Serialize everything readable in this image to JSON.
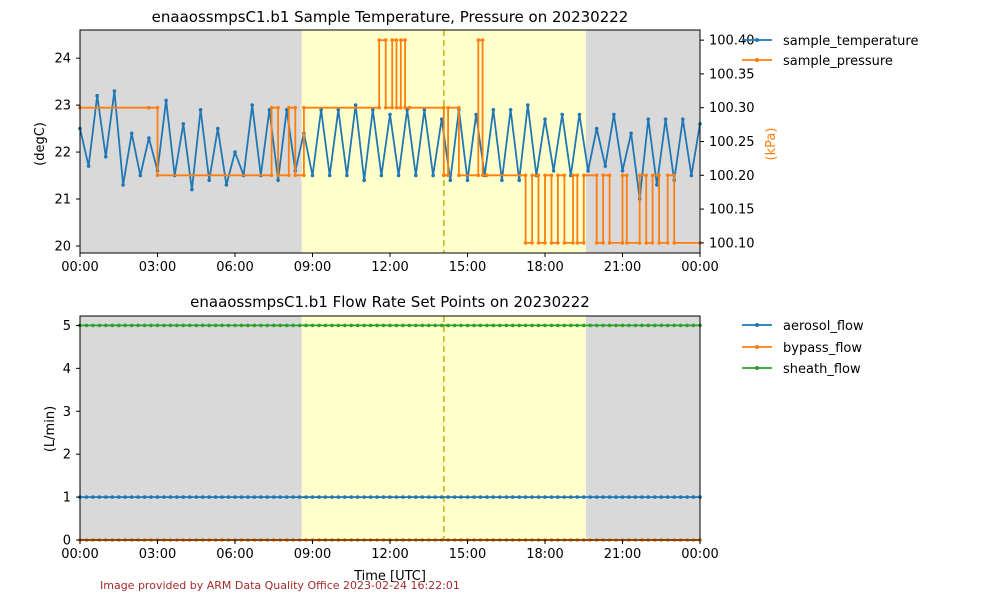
{
  "footer": {
    "credit": "Image provided by ARM Data Quality Office 2023-02-24 16:22:01"
  },
  "colors": {
    "temperature": "#1f77b4",
    "pressure": "#ff7f0e",
    "aerosol": "#1f77b4",
    "bypass": "#ff7f0e",
    "sheath": "#2ca02c",
    "night_shade": "#d9d9d9",
    "day_shade": "#ffffcc",
    "marker_line": "#bcbd22",
    "credit": "#a52a2a"
  },
  "chart_data": [
    {
      "type": "line",
      "title": "enaaossmpsC1.b1 Sample Temperature, Pressure on 20230222",
      "xlabel": "",
      "ylabel": "(degC)",
      "y2label": "(kPa)",
      "xlim": [
        "00:00",
        "24:00"
      ],
      "ylim": [
        19.85,
        24.6
      ],
      "y2lim": [
        100.085,
        100.415
      ],
      "x_ticks": [
        "00:00",
        "03:00",
        "06:00",
        "09:00",
        "12:00",
        "15:00",
        "18:00",
        "21:00",
        "00:00"
      ],
      "y_ticks": [
        20,
        21,
        22,
        23,
        24
      ],
      "y2_ticks": [
        "100.10",
        "100.15",
        "100.20",
        "100.25",
        "100.30",
        "100.35",
        "100.40"
      ],
      "shading": [
        {
          "kind": "night",
          "from": "00:00",
          "to": "08:35"
        },
        {
          "kind": "day",
          "from": "08:35",
          "to": "19:35"
        },
        {
          "kind": "night",
          "from": "19:35",
          "to": "24:00"
        }
      ],
      "vertical_marker": "14:05",
      "legend_position": "outside-right",
      "series": [
        {
          "name": "sample_temperature",
          "axis": "left",
          "note": "oscillates between ~21.3 and ~23.0 degC roughly every 20 minutes",
          "x": [
            "00:00",
            "00:20",
            "00:40",
            "01:00",
            "01:20",
            "01:40",
            "02:00",
            "02:20",
            "02:40",
            "03:00",
            "03:20",
            "03:40",
            "04:00",
            "04:20",
            "04:40",
            "05:00",
            "05:20",
            "05:40",
            "06:00",
            "06:20",
            "06:40",
            "07:00",
            "07:20",
            "07:40",
            "08:00",
            "08:20",
            "08:40",
            "09:00",
            "09:20",
            "09:40",
            "10:00",
            "10:20",
            "10:40",
            "11:00",
            "11:20",
            "11:40",
            "12:00",
            "12:20",
            "12:40",
            "13:00",
            "13:20",
            "13:40",
            "14:00",
            "14:20",
            "14:40",
            "15:00",
            "15:20",
            "15:40",
            "16:00",
            "16:20",
            "16:40",
            "17:00",
            "17:20",
            "17:40",
            "18:00",
            "18:20",
            "18:40",
            "19:00",
            "19:20",
            "19:40",
            "20:00",
            "20:20",
            "20:40",
            "21:00",
            "21:20",
            "21:40",
            "22:00",
            "22:20",
            "22:40",
            "23:00",
            "23:20",
            "23:40",
            "24:00"
          ],
          "values": [
            22.5,
            21.7,
            23.2,
            21.9,
            23.3,
            21.3,
            22.4,
            21.5,
            22.3,
            21.6,
            23.1,
            21.5,
            22.6,
            21.2,
            22.9,
            21.4,
            22.5,
            21.3,
            22.0,
            21.5,
            23.0,
            21.5,
            22.9,
            21.4,
            22.9,
            21.6,
            22.4,
            21.5,
            22.9,
            21.5,
            22.9,
            21.5,
            23.0,
            21.4,
            22.9,
            21.5,
            22.8,
            21.5,
            22.9,
            21.5,
            22.9,
            21.5,
            22.7,
            21.4,
            22.9,
            21.4,
            22.8,
            21.5,
            22.9,
            21.4,
            22.9,
            21.4,
            23.0,
            21.5,
            22.7,
            21.6,
            22.8,
            21.5,
            22.8,
            21.6,
            22.5,
            21.7,
            22.8,
            21.6,
            22.4,
            21.0,
            22.7,
            21.3,
            22.7,
            21.4,
            22.7,
            21.5,
            22.6
          ]
        },
        {
          "name": "sample_pressure",
          "axis": "right",
          "x": [
            "00:00",
            "02:40",
            "02:40",
            "03:00",
            "03:00",
            "07:25",
            "07:25",
            "07:40",
            "07:40",
            "08:05",
            "08:05",
            "08:20",
            "08:20",
            "08:40",
            "08:40",
            "11:35",
            "11:35",
            "11:50",
            "11:50",
            "12:05",
            "12:05",
            "12:15",
            "12:15",
            "12:25",
            "12:25",
            "12:35",
            "12:35",
            "12:45",
            "12:45",
            "14:05",
            "14:05",
            "14:15",
            "14:15",
            "14:40",
            "14:40",
            "15:25",
            "15:25",
            "15:35",
            "15:35",
            "15:45",
            "15:45",
            "17:15",
            "17:15",
            "17:30",
            "17:30",
            "17:45",
            "17:45",
            "18:00",
            "18:00",
            "18:15",
            "18:15",
            "18:30",
            "18:30",
            "18:45",
            "18:45",
            "19:05",
            "19:05",
            "19:15",
            "19:15",
            "19:30",
            "19:30",
            "20:00",
            "20:00",
            "20:15",
            "20:15",
            "20:30",
            "20:30",
            "21:00",
            "21:00",
            "21:10",
            "21:10",
            "21:40",
            "21:40",
            "21:55",
            "21:55",
            "22:10",
            "22:10",
            "22:25",
            "22:25",
            "22:45",
            "22:45",
            "23:00",
            "23:00",
            "24:00"
          ],
          "values": [
            100.3,
            100.3,
            100.3,
            100.3,
            100.2,
            100.2,
            100.3,
            100.3,
            100.2,
            100.2,
            100.3,
            100.3,
            100.2,
            100.2,
            100.3,
            100.3,
            100.4,
            100.4,
            100.3,
            100.3,
            100.4,
            100.4,
            100.3,
            100.3,
            100.4,
            100.4,
            100.3,
            100.3,
            100.3,
            100.3,
            100.2,
            100.2,
            100.3,
            100.3,
            100.2,
            100.2,
            100.4,
            100.4,
            100.2,
            100.2,
            100.2,
            100.2,
            100.1,
            100.1,
            100.2,
            100.2,
            100.1,
            100.1,
            100.2,
            100.2,
            100.1,
            100.1,
            100.2,
            100.2,
            100.1,
            100.1,
            100.2,
            100.2,
            100.1,
            100.1,
            100.2,
            100.2,
            100.1,
            100.1,
            100.2,
            100.2,
            100.1,
            100.1,
            100.2,
            100.2,
            100.1,
            100.1,
            100.2,
            100.2,
            100.1,
            100.1,
            100.2,
            100.2,
            100.1,
            100.1,
            100.2,
            100.2,
            100.1,
            100.1
          ]
        }
      ]
    },
    {
      "type": "line",
      "title": "enaaossmpsC1.b1 Flow Rate Set Points on 20230222",
      "xlabel": "Time [UTC]",
      "ylabel": "(L/min)",
      "xlim": [
        "00:00",
        "24:00"
      ],
      "ylim": [
        0,
        5.22
      ],
      "x_ticks": [
        "00:00",
        "03:00",
        "06:00",
        "09:00",
        "12:00",
        "15:00",
        "18:00",
        "21:00",
        "00:00"
      ],
      "y_ticks": [
        0,
        1,
        2,
        3,
        4,
        5
      ],
      "shading": [
        {
          "kind": "night",
          "from": "00:00",
          "to": "08:35"
        },
        {
          "kind": "day",
          "from": "08:35",
          "to": "19:35"
        },
        {
          "kind": "night",
          "from": "19:35",
          "to": "24:00"
        }
      ],
      "vertical_marker": "14:05",
      "legend_position": "outside-right",
      "series": [
        {
          "name": "aerosol_flow",
          "x": [
            "00:00",
            "24:00"
          ],
          "values": [
            1,
            1
          ]
        },
        {
          "name": "bypass_flow",
          "x": [
            "00:00",
            "24:00"
          ],
          "values": [
            0,
            0
          ]
        },
        {
          "name": "sheath_flow",
          "x": [
            "00:00",
            "24:00"
          ],
          "values": [
            5,
            5
          ]
        }
      ]
    }
  ]
}
